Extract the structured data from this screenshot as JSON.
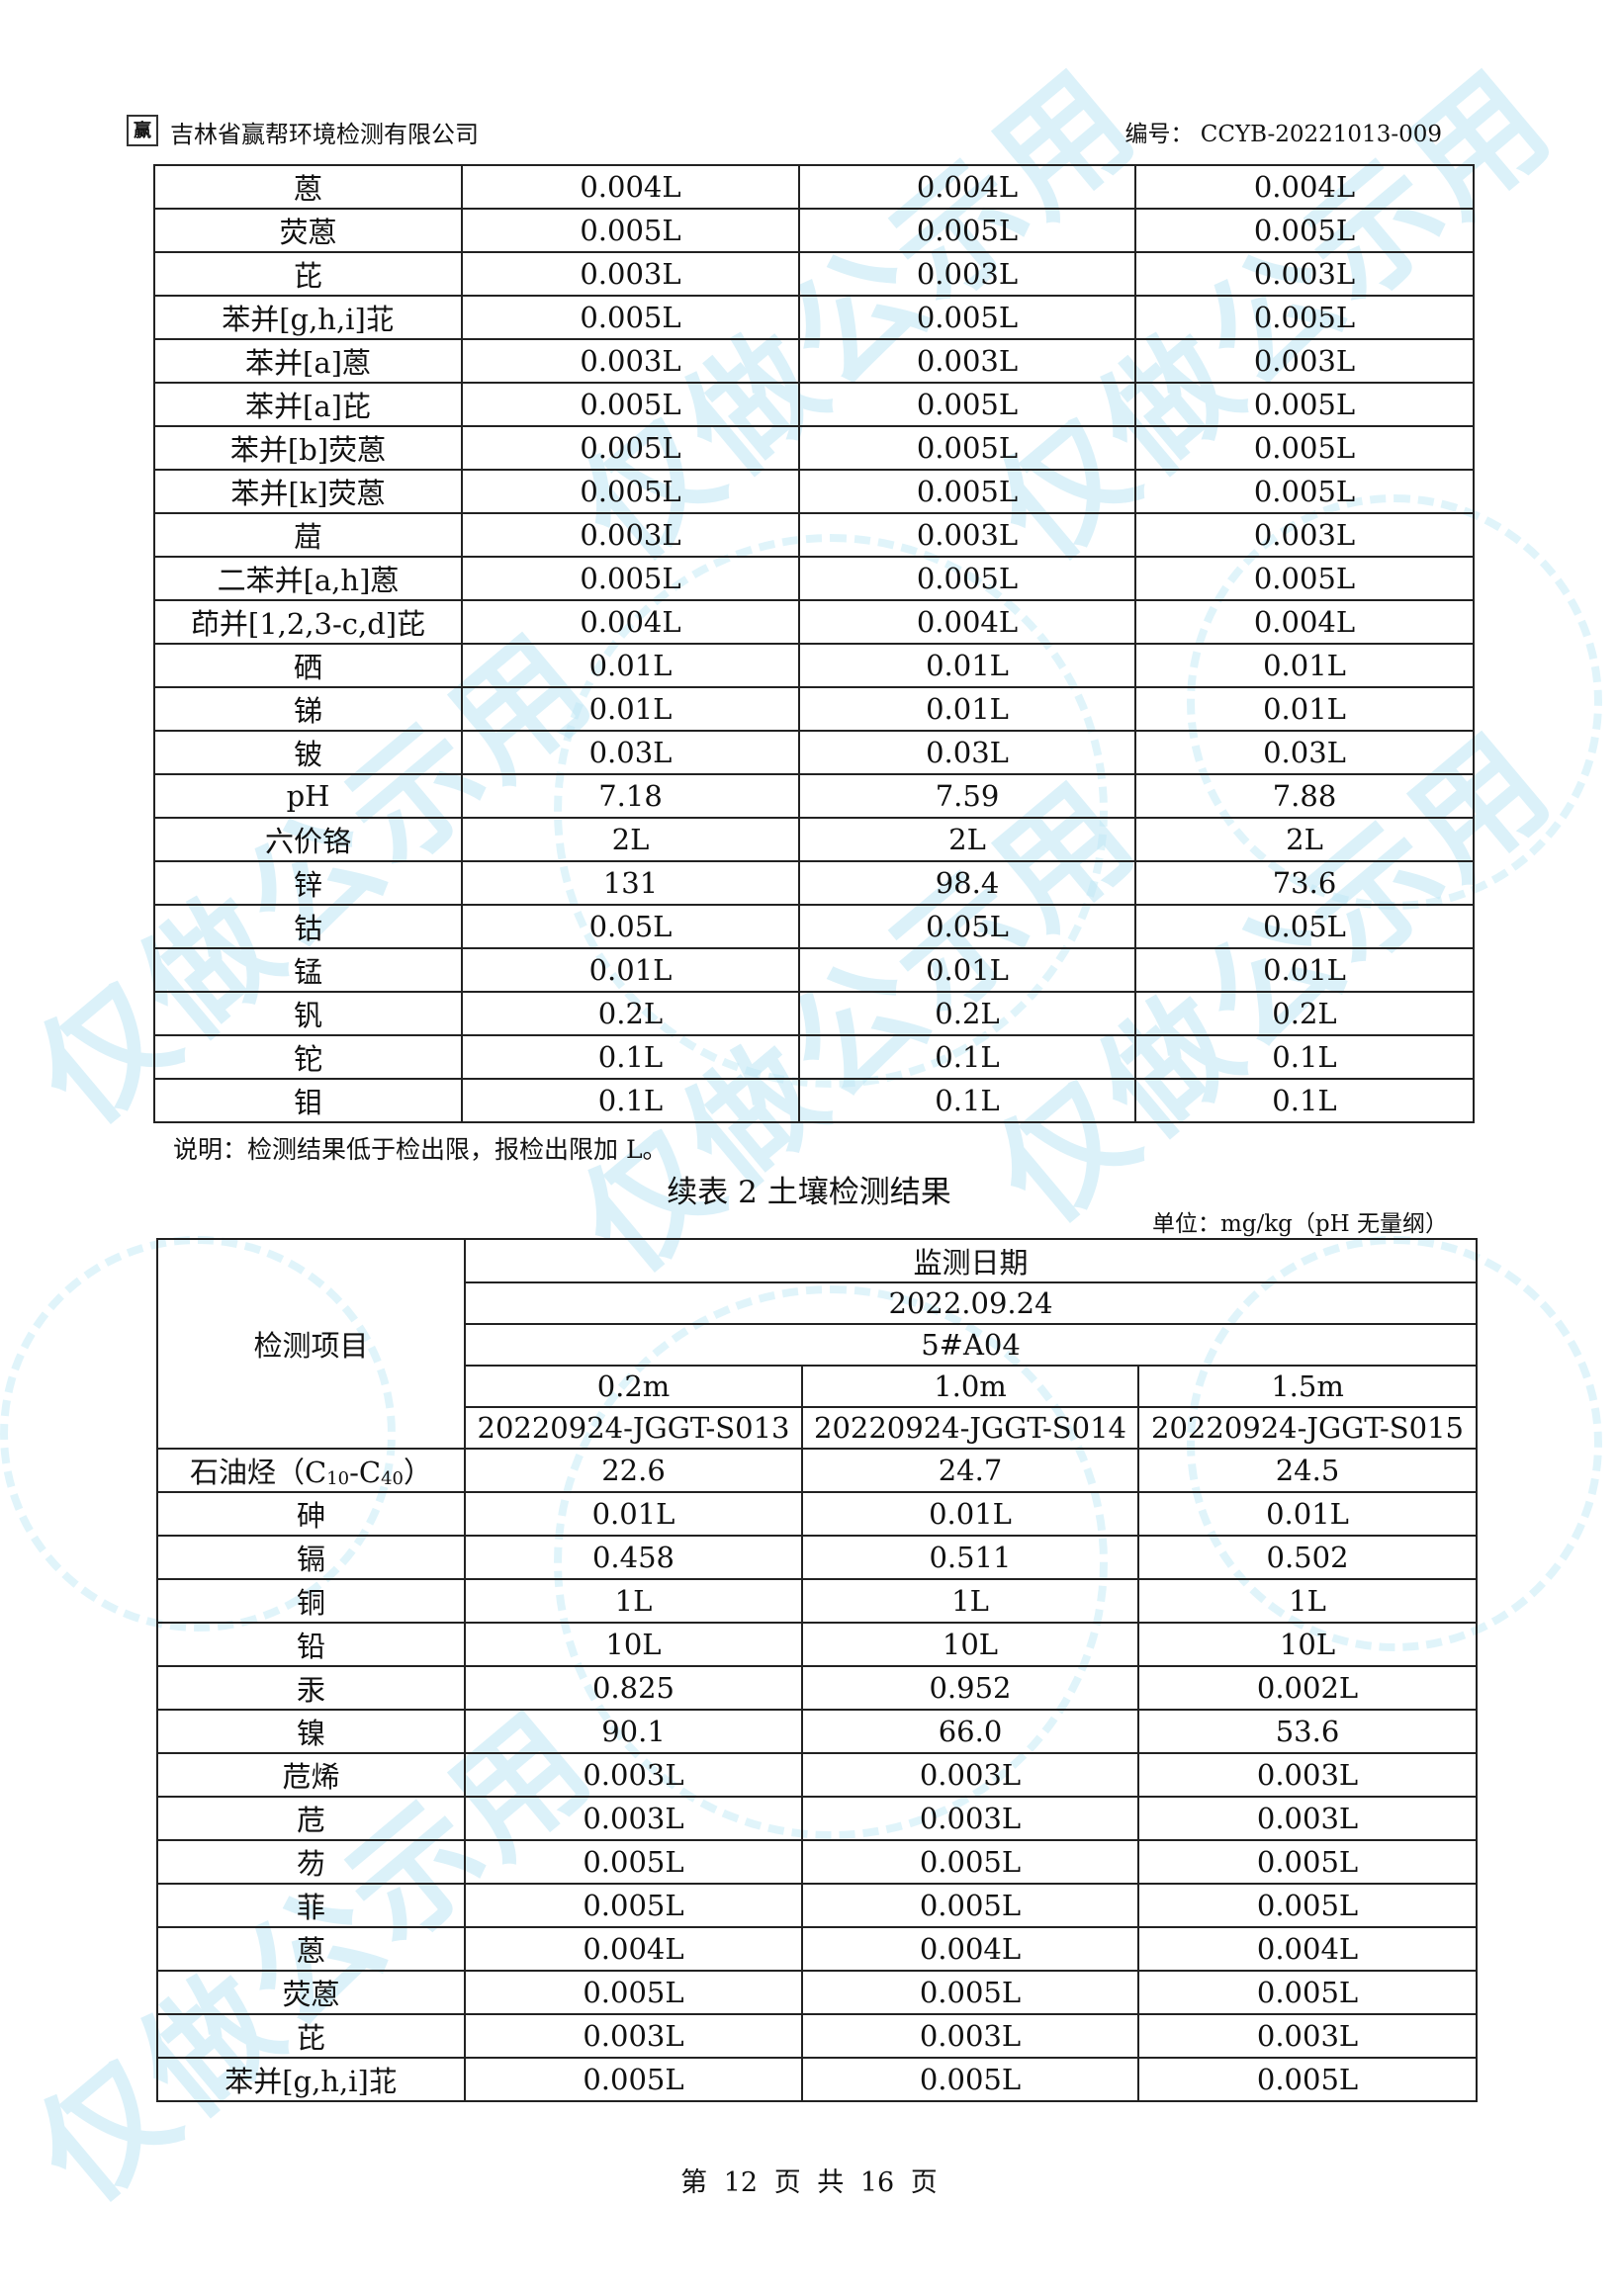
{
  "header": {
    "company": "吉林省赢帮环境检测有限公司",
    "code_label": "编号：",
    "code": "CCYB-20221013-009",
    "logo_text": "赢"
  },
  "watermark": "仅做公示用",
  "table1": {
    "rows": [
      [
        "蒽",
        "0.004L",
        "0.004L",
        "0.004L"
      ],
      [
        "荧蒽",
        "0.005L",
        "0.005L",
        "0.005L"
      ],
      [
        "芘",
        "0.003L",
        "0.003L",
        "0.003L"
      ],
      [
        "苯并[g,h,i]苝",
        "0.005L",
        "0.005L",
        "0.005L"
      ],
      [
        "苯并[a]蒽",
        "0.003L",
        "0.003L",
        "0.003L"
      ],
      [
        "苯并[a]芘",
        "0.005L",
        "0.005L",
        "0.005L"
      ],
      [
        "苯并[b]荧蒽",
        "0.005L",
        "0.005L",
        "0.005L"
      ],
      [
        "苯并[k]荧蒽",
        "0.005L",
        "0.005L",
        "0.005L"
      ],
      [
        "䓛",
        "0.003L",
        "0.003L",
        "0.003L"
      ],
      [
        "二苯并[a,h]蒽",
        "0.005L",
        "0.005L",
        "0.005L"
      ],
      [
        "茚并[1,2,3-c,d]芘",
        "0.004L",
        "0.004L",
        "0.004L"
      ],
      [
        "硒",
        "0.01L",
        "0.01L",
        "0.01L"
      ],
      [
        "锑",
        "0.01L",
        "0.01L",
        "0.01L"
      ],
      [
        "铍",
        "0.03L",
        "0.03L",
        "0.03L"
      ],
      [
        "pH",
        "7.18",
        "7.59",
        "7.88"
      ],
      [
        "六价铬",
        "2L",
        "2L",
        "2L"
      ],
      [
        "锌",
        "131",
        "98.4",
        "73.6"
      ],
      [
        "钴",
        "0.05L",
        "0.05L",
        "0.05L"
      ],
      [
        "锰",
        "0.01L",
        "0.01L",
        "0.01L"
      ],
      [
        "钒",
        "0.2L",
        "0.2L",
        "0.2L"
      ],
      [
        "铊",
        "0.1L",
        "0.1L",
        "0.1L"
      ],
      [
        "钼",
        "0.1L",
        "0.1L",
        "0.1L"
      ]
    ]
  },
  "note": "说明：检测结果低于检出限，报检出限加 L。",
  "table2_title": "续表 2 土壤检测结果",
  "unit": "单位：mg/kg（pH 无量纲）",
  "table2": {
    "item_header": "检测项目",
    "date_header": "监测日期",
    "date": "2022.09.24",
    "site": "5#A04",
    "depths": [
      "0.2m",
      "1.0m",
      "1.5m"
    ],
    "sample_ids": [
      "20220924-JGGT-S013",
      "20220924-JGGT-S014",
      "20220924-JGGT-S015"
    ],
    "tph_label": "石油烃（C",
    "tph_sub1": "10",
    "tph_mid": "-C",
    "tph_sub2": "40",
    "tph_end": "）",
    "tph_values": [
      "22.6",
      "24.7",
      "24.5"
    ],
    "rows": [
      [
        "砷",
        "0.01L",
        "0.01L",
        "0.01L"
      ],
      [
        "镉",
        "0.458",
        "0.511",
        "0.502"
      ],
      [
        "铜",
        "1L",
        "1L",
        "1L"
      ],
      [
        "铅",
        "10L",
        "10L",
        "10L"
      ],
      [
        "汞",
        "0.825",
        "0.952",
        "0.002L"
      ],
      [
        "镍",
        "90.1",
        "66.0",
        "53.6"
      ],
      [
        "苊烯",
        "0.003L",
        "0.003L",
        "0.003L"
      ],
      [
        "苊",
        "0.003L",
        "0.003L",
        "0.003L"
      ],
      [
        "芴",
        "0.005L",
        "0.005L",
        "0.005L"
      ],
      [
        "菲",
        "0.005L",
        "0.005L",
        "0.005L"
      ],
      [
        "蒽",
        "0.004L",
        "0.004L",
        "0.004L"
      ],
      [
        "荧蒽",
        "0.005L",
        "0.005L",
        "0.005L"
      ],
      [
        "芘",
        "0.003L",
        "0.003L",
        "0.003L"
      ],
      [
        "苯并[g,h,i]苝",
        "0.005L",
        "0.005L",
        "0.005L"
      ]
    ]
  },
  "footer": "第 12 页 共 16 页"
}
